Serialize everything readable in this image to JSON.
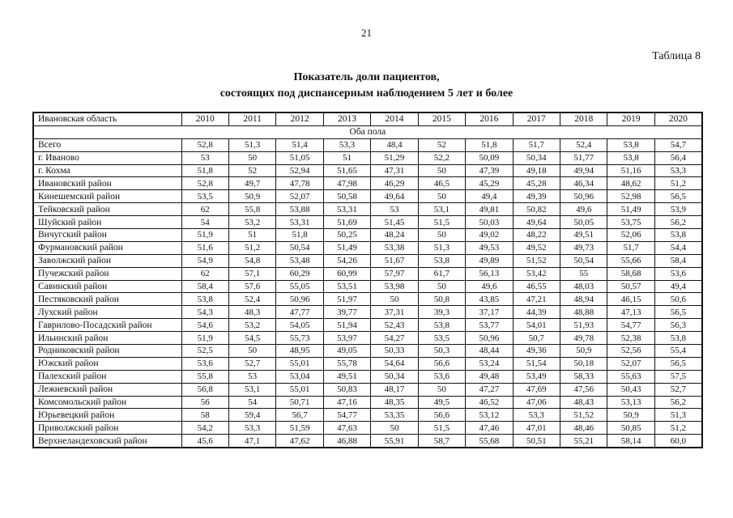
{
  "page_number": "21",
  "table_label": "Таблица 8",
  "title": {
    "line1": "Показатель доли пациентов,",
    "line2": "состоящих под диспансерным наблюдением 5 лет и более"
  },
  "table": {
    "region_header": "Ивановская область",
    "years": [
      "2010",
      "2011",
      "2012",
      "2013",
      "2014",
      "2015",
      "2016",
      "2017",
      "2018",
      "2019",
      "2020"
    ],
    "section_label": "Оба пола",
    "rows": [
      {
        "name": "Всего",
        "values": [
          "52,8",
          "51,3",
          "51,4",
          "53,3",
          "48,4",
          "52",
          "51,8",
          "51,7",
          "52,4",
          "53,8",
          "54,7"
        ]
      },
      {
        "name": "г. Иваново",
        "values": [
          "53",
          "50",
          "51,05",
          "51",
          "51,29",
          "52,2",
          "50,09",
          "50,34",
          "51,77",
          "53,8",
          "56,4"
        ]
      },
      {
        "name": "г. Кохма",
        "values": [
          "51,8",
          "52",
          "52,94",
          "51,65",
          "47,31",
          "50",
          "47,39",
          "49,18",
          "49,94",
          "51,16",
          "53,3"
        ]
      },
      {
        "name": "Ивановский район",
        "values": [
          "52,8",
          "49,7",
          "47,78",
          "47,98",
          "46,29",
          "46,5",
          "45,29",
          "45,28",
          "46,34",
          "48,62",
          "51,2"
        ]
      },
      {
        "name": "Кинешемский район",
        "values": [
          "53,5",
          "50,9",
          "52,07",
          "50,58",
          "49,64",
          "50",
          "49,4",
          "49,39",
          "50,96",
          "52,98",
          "56,5"
        ]
      },
      {
        "name": "Тейковский район",
        "values": [
          "62",
          "55,8",
          "53,88",
          "53,31",
          "53",
          "53,1",
          "49,81",
          "50,82",
          "49,6",
          "51,49",
          "53,9"
        ]
      },
      {
        "name": "Шуйский район",
        "values": [
          "54",
          "53,2",
          "53,31",
          "51,69",
          "51,45",
          "51,5",
          "50,03",
          "49,64",
          "50,05",
          "53,75",
          "56,2"
        ]
      },
      {
        "name": "Вичугский район",
        "values": [
          "51,9",
          "51",
          "51,8",
          "50,25",
          "48,24",
          "50",
          "49,02",
          "48,22",
          "49,51",
          "52,06",
          "53,8"
        ]
      },
      {
        "name": "Фурмановский район",
        "values": [
          "51,6",
          "51,2",
          "50,54",
          "51,49",
          "53,38",
          "51,3",
          "49,53",
          "49,52",
          "49,73",
          "51,7",
          "54,4"
        ]
      },
      {
        "name": "Заволжский район",
        "values": [
          "54,9",
          "54,8",
          "53,48",
          "54,26",
          "51,67",
          "53,8",
          "49,89",
          "51,52",
          "50,54",
          "55,66",
          "58,4"
        ]
      },
      {
        "name": "Пучежский район",
        "values": [
          "62",
          "57,1",
          "60,29",
          "60,99",
          "57,97",
          "61,7",
          "56,13",
          "53,42",
          "55",
          "58,68",
          "53,6"
        ]
      },
      {
        "name": "Савинский район",
        "values": [
          "58,4",
          "57,6",
          "55,05",
          "53,51",
          "53,98",
          "50",
          "49,6",
          "46,55",
          "48,03",
          "50,57",
          "49,4"
        ]
      },
      {
        "name": "Пестяковский район",
        "values": [
          "53,8",
          "52,4",
          "50,96",
          "51,97",
          "50",
          "50,8",
          "43,85",
          "47,21",
          "48,94",
          "46,15",
          "50,6"
        ]
      },
      {
        "name": "Лухский район",
        "values": [
          "54,3",
          "48,3",
          "47,77",
          "39,77",
          "37,31",
          "39,3",
          "37,17",
          "44,39",
          "48,88",
          "47,13",
          "56,5"
        ]
      },
      {
        "name": "Гаврилово-Посадский район",
        "values": [
          "54,6",
          "53,2",
          "54,05",
          "51,94",
          "52,43",
          "53,8",
          "53,77",
          "54,01",
          "51,93",
          "54,77",
          "56,3"
        ]
      },
      {
        "name": "Ильинский район",
        "values": [
          "51,9",
          "54,5",
          "55,73",
          "53,97",
          "54,27",
          "53,5",
          "50,96",
          "50,7",
          "49,78",
          "52,38",
          "53,8"
        ]
      },
      {
        "name": "Родниковский район",
        "values": [
          "52,5",
          "50",
          "48,95",
          "49,05",
          "50,33",
          "50,3",
          "48,44",
          "49,36",
          "50,9",
          "52,56",
          "55,4"
        ]
      },
      {
        "name": "Южский район",
        "values": [
          "53,6",
          "52,7",
          "55,01",
          "55,78",
          "54,64",
          "56,6",
          "53,24",
          "51,54",
          "50,18",
          "52,07",
          "56,5"
        ]
      },
      {
        "name": "Палехский район",
        "values": [
          "55,8",
          "53",
          "53,04",
          "49,51",
          "50,34",
          "53,6",
          "49,48",
          "53,49",
          "58,33",
          "55,63",
          "57,5"
        ]
      },
      {
        "name": "Лежневский район",
        "values": [
          "56,8",
          "53,1",
          "55,01",
          "50,83",
          "48,17",
          "50",
          "47,27",
          "47,69",
          "47,56",
          "50,43",
          "52,7"
        ]
      },
      {
        "name": "Комсомольский район",
        "values": [
          "56",
          "54",
          "50,71",
          "47,16",
          "48,35",
          "49,5",
          "46,52",
          "47,06",
          "48,43",
          "53,13",
          "56,2"
        ]
      },
      {
        "name": "Юрьевецкий район",
        "values": [
          "58",
          "59,4",
          "56,7",
          "54,77",
          "53,35",
          "56,6",
          "53,12",
          "53,3",
          "51,52",
          "50,9",
          "51,3"
        ]
      },
      {
        "name": "Приволжский район",
        "values": [
          "54,2",
          "53,3",
          "51,59",
          "47,63",
          "50",
          "51,5",
          "47,46",
          "47,01",
          "48,46",
          "50,85",
          "51,2"
        ]
      },
      {
        "name": "Верхнеландеховский район",
        "values": [
          "45,6",
          "47,1",
          "47,62",
          "46,88",
          "55,91",
          "58,7",
          "55,68",
          "50,51",
          "55,21",
          "58,14",
          "60,0"
        ]
      }
    ]
  }
}
